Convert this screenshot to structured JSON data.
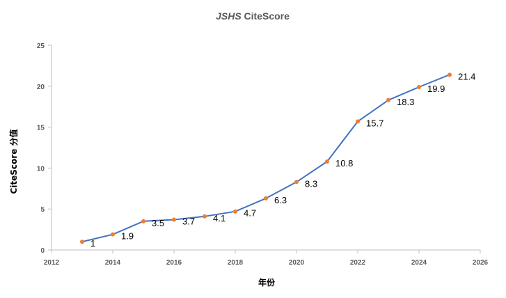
{
  "chart_data": {
    "type": "line",
    "title_italic": "JSHS",
    "title_rest": " CiteScore",
    "xlabel": "年份",
    "ylabel": "CiteScore 分值",
    "x": [
      2013,
      2014,
      2015,
      2016,
      2017,
      2018,
      2019,
      2020,
      2021,
      2022,
      2023,
      2024,
      2025
    ],
    "series": [
      {
        "values": [
          1,
          1.9,
          3.5,
          3.7,
          4.1,
          4.7,
          6.3,
          8.3,
          10.8,
          15.7,
          18.3,
          19.9,
          21.4
        ],
        "labels": [
          "1",
          "1.9",
          "3.5",
          "3.7",
          "4.1",
          "4.7",
          "6.3",
          "8.3",
          "10.8",
          "15.7",
          "18.3",
          "19.9",
          "21.4"
        ],
        "line_color": "#4472c4",
        "marker_color": "#ed7d31"
      }
    ],
    "xlim": [
      2012,
      2026
    ],
    "ylim": [
      0,
      25
    ],
    "x_ticks": [
      2012,
      2014,
      2016,
      2018,
      2020,
      2022,
      2024,
      2026
    ],
    "y_ticks": [
      0,
      5,
      10,
      15,
      20,
      25
    ],
    "x_tick_labels": [
      "2012",
      "2014",
      "2016",
      "2018",
      "2020",
      "2022",
      "2024",
      "2026"
    ],
    "y_tick_labels": [
      "0",
      "5",
      "10",
      "15",
      "20",
      "25"
    ],
    "grid": false,
    "legend": false,
    "data_labels": true,
    "axis_color": "#bfbfbf"
  }
}
